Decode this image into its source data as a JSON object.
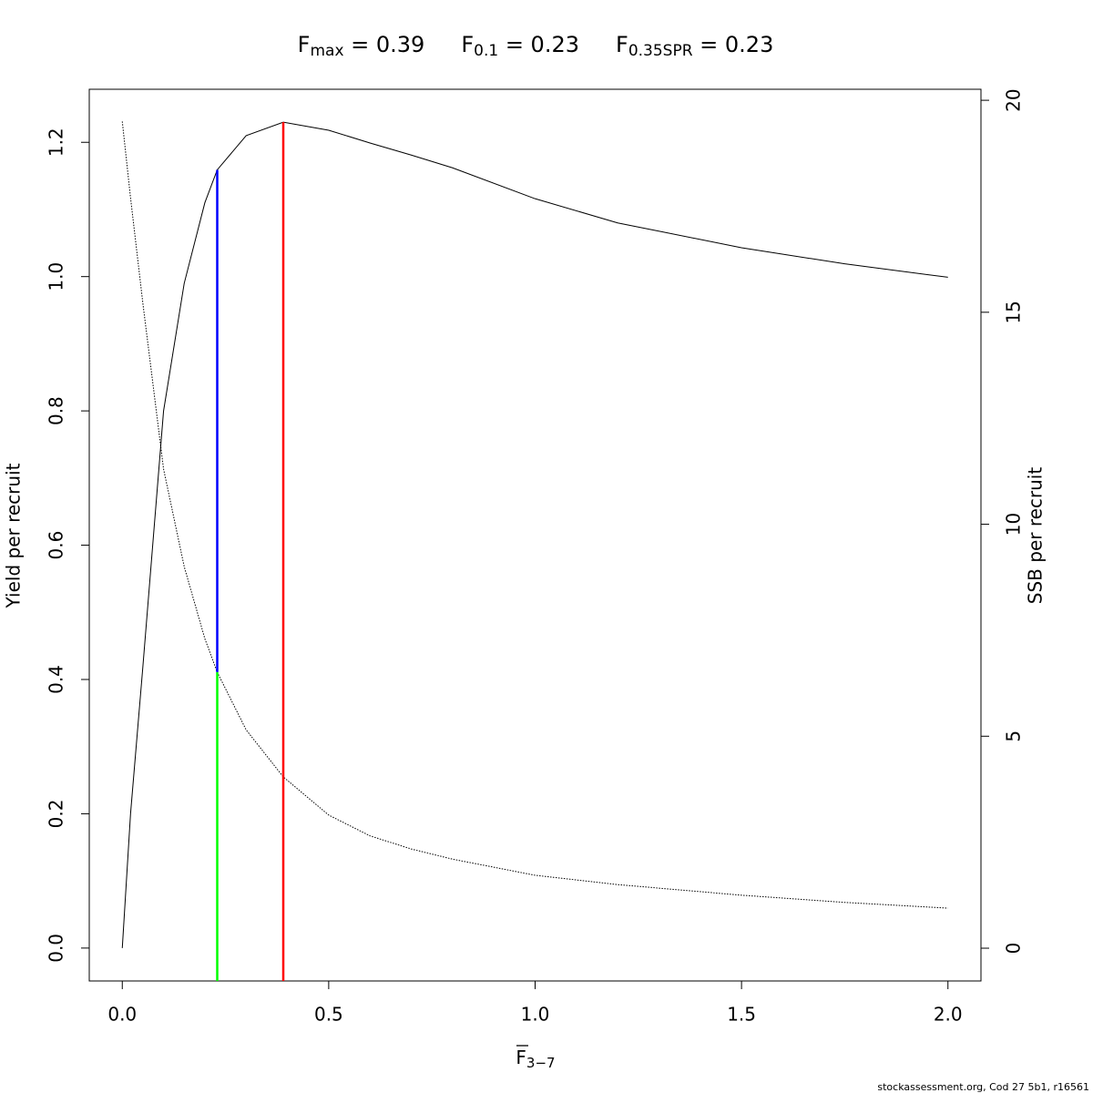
{
  "chart_data": {
    "type": "line",
    "title": [
      {
        "main": "F",
        "sub": "max",
        "rest": " = 0.39"
      },
      {
        "main": "F",
        "sub": "0.1",
        "rest": " = 0.23"
      },
      {
        "main": "F",
        "sub": "0.35SPR",
        "rest": " = 0.23"
      }
    ],
    "xlabel": {
      "main": "F",
      "sub": "3−7"
    },
    "ylabel": "Yield per recruit",
    "y2label": "SSB per recruit",
    "footnote": "stockassessment.org, Cod  27  5b1, r16561",
    "x": [
      0,
      0.02,
      0.05,
      0.1,
      0.15,
      0.2,
      0.23,
      0.3,
      0.39,
      0.5,
      0.6,
      0.7,
      0.8,
      1.0,
      1.2,
      1.5,
      1.75,
      2.0
    ],
    "series": [
      {
        "name": "Yield per recruit",
        "color": "#000000",
        "linestyle": "solid",
        "values": [
          0,
          0.2,
          0.42,
          0.8,
          0.99,
          1.11,
          1.159,
          1.21,
          1.23,
          1.218,
          1.199,
          1.181,
          1.162,
          1.116,
          1.08,
          1.043,
          1.019,
          0.999
        ]
      },
      {
        "name": "SSB per recruit",
        "color": "#000000",
        "linestyle": "dotted",
        "axis": "y2",
        "values": [
          19.5,
          17.7,
          15.2,
          11.3,
          9.0,
          7.3,
          6.51,
          5.15,
          4.04,
          3.14,
          2.65,
          2.34,
          2.1,
          1.72,
          1.5,
          1.25,
          1.08,
          0.945
        ]
      }
    ],
    "reference_lines": [
      {
        "x": 0.23,
        "color": "#00ff00",
        "to": 0.411
      },
      {
        "x": 0.23,
        "color": "#0000ff",
        "from": 0.411,
        "to": 1.159
      },
      {
        "x": 0.39,
        "color": "#ff0000",
        "to": 1.23
      }
    ],
    "xlim": [
      -0.08,
      2.08
    ],
    "ylim": [
      -0.049,
      1.279
    ],
    "y2lim": [
      -0.773,
      20.26
    ],
    "xticks": [
      {
        "value": 0,
        "label": "0.0"
      },
      0.5,
      {
        "value": 1,
        "label": "1.0"
      },
      1.5,
      {
        "value": 2,
        "label": "2.0"
      }
    ],
    "yticks": [
      {
        "value": 0,
        "label": "0.0"
      },
      0.2,
      0.4,
      0.6,
      0.8,
      {
        "value": 1,
        "label": "1.0"
      },
      1.2
    ],
    "y2ticks": [
      0,
      5,
      10,
      15,
      20
    ]
  }
}
